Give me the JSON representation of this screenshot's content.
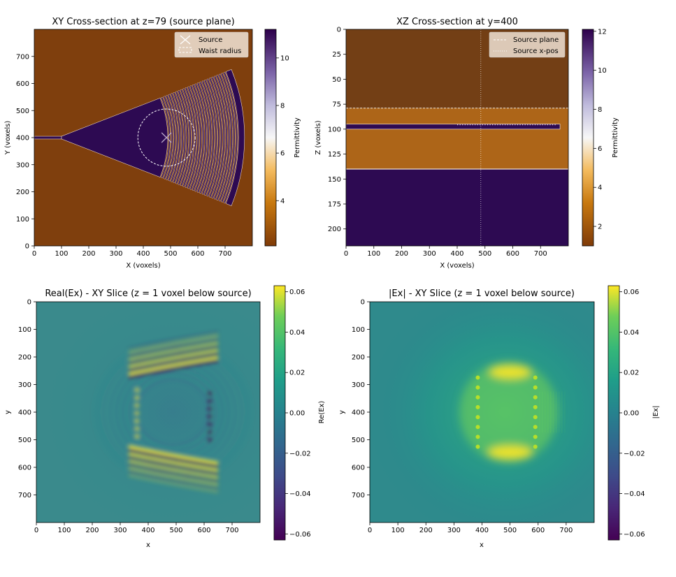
{
  "chart_data": [
    {
      "type": "heatmap",
      "title": "XY Cross-section at z=79 (source plane)",
      "xlabel": "X (voxels)",
      "ylabel": "Y (voxels)",
      "xlim": [
        0,
        800
      ],
      "ylim": [
        0,
        800
      ],
      "xticks": [
        "0",
        "100",
        "200",
        "300",
        "400",
        "500",
        "600",
        "700"
      ],
      "yticks": [
        "0",
        "100",
        "200",
        "300",
        "400",
        "500",
        "600",
        "700"
      ],
      "colorbar": {
        "label": "Permittivity",
        "ticks": [
          "4",
          "6",
          "8",
          "10"
        ],
        "range": [
          2.1,
          11.2
        ],
        "colormap": "PuOr"
      },
      "legend": {
        "position": "top-right",
        "entries": [
          "Source",
          "Waist radius"
        ]
      },
      "background_permittivity": 2.1,
      "core_permittivity": 11.2,
      "waveguide": {
        "x": [
          0,
          100
        ],
        "y": 400,
        "half_width": 5
      },
      "taper": {
        "apex_x": 100,
        "apex_y": 400
      },
      "grating": {
        "center_x": 100,
        "center_y": 400,
        "inner_radius": 390,
        "outer_radius": 640,
        "angle_deg": 22,
        "period": 9.5,
        "reflector_radius": [
          650,
          672
        ]
      },
      "source": {
        "x": 485,
        "y": 400
      },
      "waist_radius": 105
    },
    {
      "type": "heatmap",
      "title": "XZ Cross-section at y=400",
      "xlabel": "X (voxels)",
      "ylabel": "Z (voxels)",
      "xlim": [
        0,
        800
      ],
      "ylim": [
        217,
        0
      ],
      "xticks": [
        "0",
        "100",
        "200",
        "300",
        "400",
        "500",
        "600",
        "700"
      ],
      "yticks": [
        "0",
        "25",
        "50",
        "75",
        "100",
        "125",
        "150",
        "175",
        "200"
      ],
      "colorbar": {
        "label": "Permittivity",
        "ticks": [
          "2",
          "4",
          "6",
          "8",
          "10",
          "12"
        ],
        "range": [
          1.0,
          12.1
        ],
        "colormap": "PuOr"
      },
      "legend": {
        "position": "top-right",
        "entries": [
          "Source plane",
          "Source x-pos"
        ]
      },
      "layers": [
        {
          "z": [
            0,
            79
          ],
          "permittivity": 1.0
        },
        {
          "z": [
            79,
            140
          ],
          "permittivity": 2.1
        },
        {
          "z": [
            140,
            217
          ],
          "permittivity": 12.1
        }
      ],
      "core": {
        "z": [
          95,
          100
        ],
        "x": [
          0,
          770
        ]
      },
      "source_plane_z": 79,
      "source_x": 485
    },
    {
      "type": "heatmap",
      "title": "Real(Ex) - XY Slice (z = 1 voxel below source)",
      "xlabel": "x",
      "ylabel": "y",
      "xlim": [
        0,
        800
      ],
      "ylim": [
        800,
        0
      ],
      "xticks": [
        "0",
        "100",
        "200",
        "300",
        "400",
        "500",
        "600",
        "700"
      ],
      "yticks": [
        "0",
        "100",
        "200",
        "300",
        "400",
        "500",
        "600",
        "700"
      ],
      "colorbar": {
        "label": "Re(Ex)",
        "ticks": [
          "0.06",
          "0.04",
          "0.02",
          "0.00",
          "−0.02",
          "−0.04",
          "−0.06"
        ],
        "range": [
          -0.063,
          0.063
        ],
        "colormap": "viridis"
      },
      "source_box": {
        "x": [
          385,
          590
        ],
        "y": [
          295,
          505
        ]
      }
    },
    {
      "type": "heatmap",
      "title": "|Ex| - XY Slice (z = 1 voxel below source)",
      "xlabel": "x",
      "ylabel": "y",
      "xlim": [
        0,
        800
      ],
      "ylim": [
        800,
        0
      ],
      "xticks": [
        "0",
        "100",
        "200",
        "300",
        "400",
        "500",
        "600",
        "700"
      ],
      "yticks": [
        "0",
        "100",
        "200",
        "300",
        "400",
        "500",
        "600",
        "700"
      ],
      "colorbar": {
        "label": "|Ex|",
        "ticks": [
          "0.06",
          "0.04",
          "0.02",
          "0.00",
          "−0.02",
          "−0.04",
          "−0.06"
        ],
        "range": [
          -0.063,
          0.063
        ],
        "colormap": "viridis"
      },
      "source_box": {
        "x": [
          385,
          590
        ],
        "y": [
          295,
          505
        ]
      }
    }
  ]
}
